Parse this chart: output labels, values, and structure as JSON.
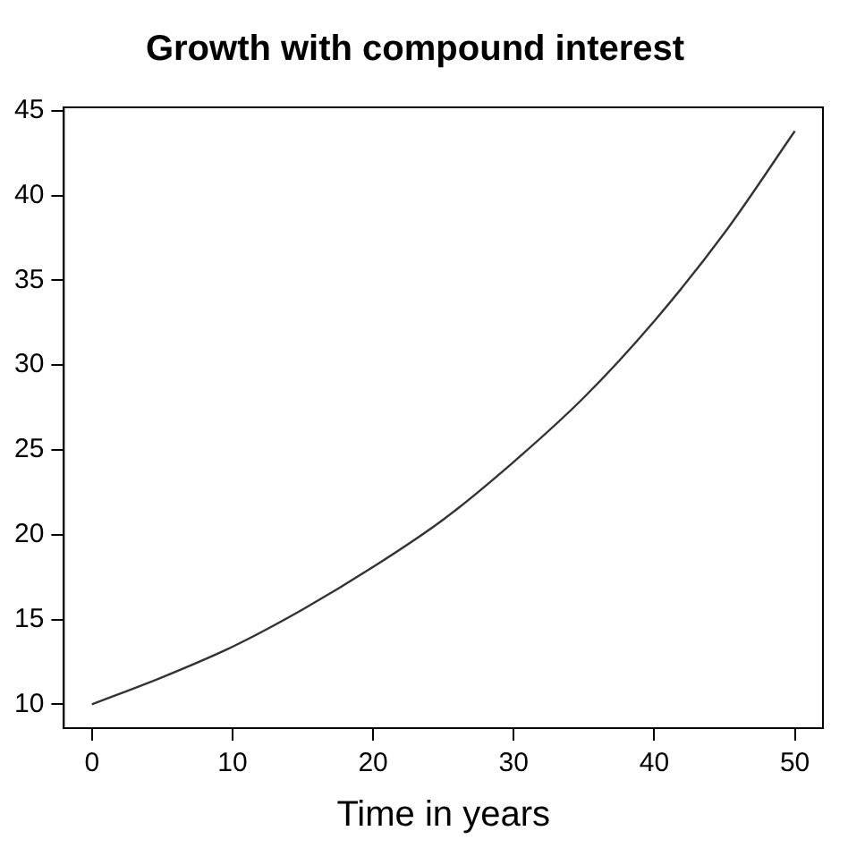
{
  "chart_data": {
    "type": "line",
    "title": "Growth with compound interest",
    "xlabel": "Time in years",
    "x": [
      0,
      5,
      10,
      15,
      20,
      25,
      30,
      35,
      40,
      45,
      50
    ],
    "series": [
      {
        "color": "#333333",
        "values": [
          10,
          11.6,
          13.4,
          15.6,
          18.1,
          20.9,
          24.3,
          28.1,
          32.6,
          37.8,
          43.8
        ]
      }
    ],
    "xlim": [
      -2,
      52
    ],
    "xticks": [
      0,
      10,
      20,
      30,
      40,
      50
    ],
    "ylim": [
      8.6,
      45.2
    ],
    "yticks": [
      10,
      15,
      20,
      25,
      30,
      35,
      40,
      45
    ],
    "grid": false,
    "legend": false,
    "marker": "none",
    "line_style": "solid"
  }
}
